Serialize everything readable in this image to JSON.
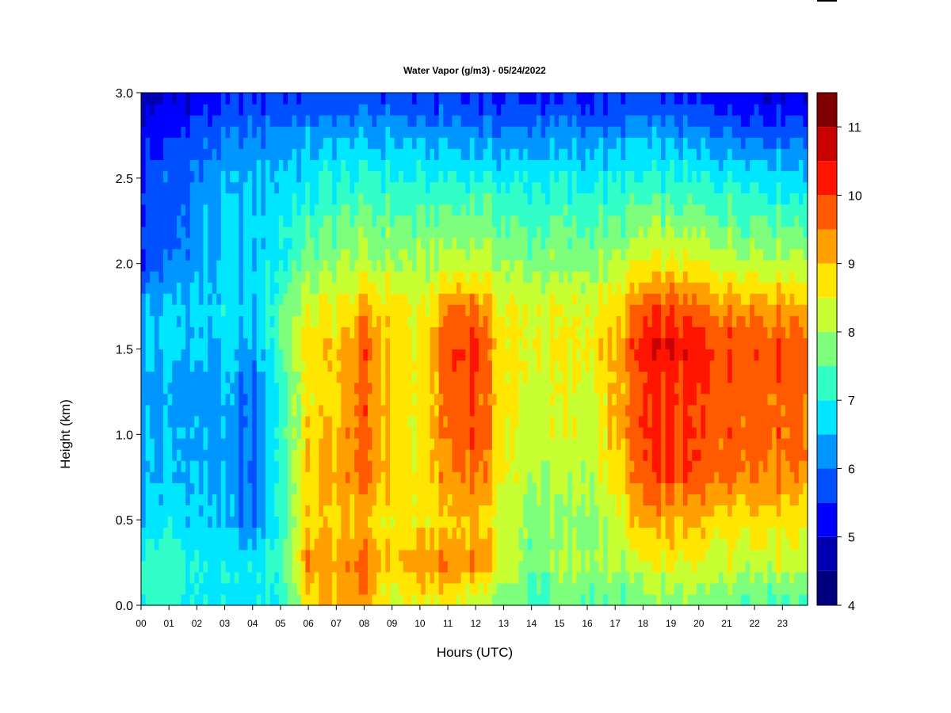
{
  "chart_data": {
    "type": "heatmap",
    "title": "Water Vapor (g/m3) - 05/24/2022",
    "xlabel": "Hours (UTC)",
    "ylabel": "Height (km)",
    "x_ticks": [
      "00",
      "01",
      "02",
      "03",
      "04",
      "05",
      "06",
      "07",
      "08",
      "09",
      "10",
      "11",
      "12",
      "13",
      "14",
      "15",
      "16",
      "17",
      "18",
      "19",
      "20",
      "21",
      "22",
      "23"
    ],
    "x_range": [
      0,
      23.9
    ],
    "y_ticks": [
      "0.0",
      "0.5",
      "1.0",
      "1.5",
      "2.0",
      "2.5",
      "3.0"
    ],
    "y_range": [
      0,
      3.0
    ],
    "heights_km": [
      0.05,
      0.25,
      0.5,
      0.75,
      1.0,
      1.25,
      1.5,
      1.75,
      2.0,
      2.25,
      2.5,
      2.75,
      2.95
    ],
    "hours": [
      0,
      1,
      2,
      3,
      4,
      5,
      6,
      7,
      8,
      9,
      10,
      11,
      12,
      13,
      14,
      15,
      16,
      17,
      18,
      19,
      20,
      21,
      22,
      23
    ],
    "z_values": [
      [
        7.2,
        7.2,
        6.9,
        6.8,
        6.8,
        7.0,
        8.7,
        9.1,
        9.3,
        8.3,
        8.6,
        8.6,
        8.4,
        7.8,
        7.3,
        7.6,
        7.6,
        7.5,
        7.7,
        7.8,
        7.8,
        7.8,
        7.6,
        7.5
      ],
      [
        7.2,
        7.4,
        7.0,
        6.9,
        6.8,
        7.4,
        9.4,
        9.2,
        9.6,
        8.8,
        9.3,
        9.5,
        9.5,
        8.4,
        7.7,
        8.0,
        8.0,
        8.0,
        8.3,
        8.5,
        8.4,
        8.5,
        8.3,
        8.4
      ],
      [
        6.6,
        6.8,
        6.6,
        6.5,
        5.9,
        7.2,
        8.7,
        8.8,
        9.0,
        8.6,
        8.6,
        8.8,
        9.1,
        8.2,
        7.8,
        7.8,
        7.8,
        8.2,
        9.1,
        9.1,
        9.0,
        8.7,
        8.8,
        8.7
      ],
      [
        6.4,
        6.6,
        6.5,
        6.4,
        5.8,
        7.3,
        8.9,
        9.2,
        9.6,
        8.9,
        8.6,
        9.4,
        9.7,
        8.6,
        8.1,
        8.1,
        8.1,
        8.6,
        9.8,
        9.9,
        9.8,
        9.6,
        9.6,
        9.5
      ],
      [
        6.4,
        6.5,
        6.4,
        6.3,
        5.9,
        7.2,
        8.8,
        9.1,
        9.8,
        8.8,
        8.5,
        9.6,
        10.0,
        8.6,
        8.3,
        8.3,
        8.3,
        8.9,
        10.0,
        10.0,
        9.9,
        9.8,
        9.8,
        9.7
      ],
      [
        6.3,
        6.4,
        6.3,
        6.4,
        5.8,
        7.2,
        8.6,
        8.9,
        9.7,
        8.8,
        8.5,
        9.6,
        9.9,
        8.6,
        8.4,
        8.4,
        8.4,
        8.9,
        9.9,
        10.0,
        9.9,
        9.8,
        9.8,
        9.7
      ],
      [
        6.4,
        6.6,
        6.5,
        6.6,
        6.2,
        7.5,
        8.8,
        8.9,
        9.8,
        8.8,
        8.5,
        10.0,
        10.2,
        8.6,
        8.5,
        8.5,
        8.6,
        9.0,
        10.3,
        10.5,
        10.2,
        10.0,
        10.0,
        9.9
      ],
      [
        6.4,
        6.6,
        6.6,
        6.8,
        6.6,
        7.4,
        8.5,
        8.5,
        9.1,
        8.7,
        8.4,
        9.4,
        9.6,
        8.5,
        8.4,
        8.4,
        8.4,
        8.8,
        9.7,
        9.9,
        9.6,
        9.4,
        9.4,
        9.3
      ],
      [
        5.6,
        6.0,
        6.3,
        6.6,
        6.6,
        7.0,
        7.7,
        7.9,
        8.1,
        8.1,
        7.9,
        8.2,
        8.3,
        8.0,
        7.8,
        7.8,
        7.9,
        8.1,
        8.5,
        8.6,
        8.5,
        8.3,
        8.3,
        8.2
      ],
      [
        5.5,
        5.8,
        6.2,
        6.5,
        6.6,
        6.9,
        7.3,
        7.5,
        7.7,
        7.6,
        7.5,
        7.6,
        7.7,
        7.5,
        7.4,
        7.4,
        7.4,
        7.5,
        7.7,
        7.8,
        7.7,
        7.6,
        7.6,
        7.5
      ],
      [
        5.6,
        5.8,
        6.1,
        6.3,
        6.4,
        6.6,
        6.8,
        7.0,
        7.1,
        7.1,
        7.0,
        7.0,
        7.0,
        6.9,
        6.9,
        6.9,
        6.9,
        6.9,
        7.0,
        7.1,
        7.0,
        7.0,
        6.9,
        6.8
      ],
      [
        5.2,
        5.4,
        5.7,
        5.9,
        6.0,
        6.2,
        6.3,
        6.4,
        6.4,
        6.4,
        6.3,
        6.3,
        6.2,
        6.2,
        6.2,
        6.2,
        6.2,
        6.2,
        6.4,
        6.3,
        6.2,
        6.1,
        6.0,
        5.9
      ],
      [
        4.8,
        5.0,
        5.2,
        5.4,
        5.5,
        5.6,
        5.7,
        5.7,
        5.7,
        5.7,
        5.6,
        5.6,
        5.5,
        5.5,
        5.5,
        5.5,
        5.5,
        5.5,
        5.6,
        5.5,
        5.4,
        5.3,
        5.2,
        5.1
      ]
    ],
    "colorbar": {
      "range": [
        4,
        11.5
      ],
      "ticks": [
        "4",
        "5",
        "6",
        "7",
        "8",
        "9",
        "10",
        "11"
      ],
      "colors": [
        "#00007F",
        "#0000B2",
        "#0000FF",
        "#0050FF",
        "#0096FF",
        "#00E6FF",
        "#32FFC8",
        "#7DFF7D",
        "#C8FF32",
        "#FFE600",
        "#FFA000",
        "#FF5A00",
        "#FF1400",
        "#C80000",
        "#7F0000"
      ]
    },
    "grid": false,
    "legend": "colorbar-right"
  }
}
